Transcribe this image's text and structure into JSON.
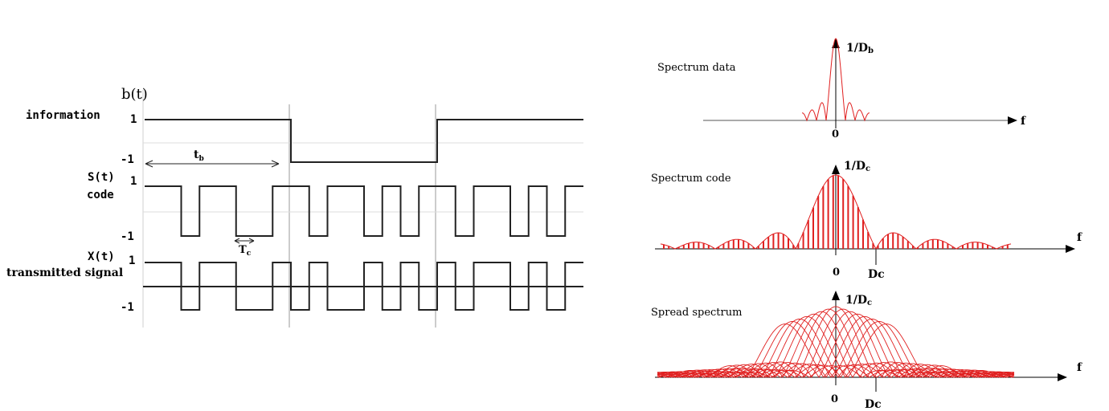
{
  "waveforms": {
    "b_label": "b(t)",
    "info_label": "information",
    "s_label": "S(t)",
    "code_label": "code",
    "x_label": "X(t)",
    "tx_label": "transmitted signal",
    "level_high": "1",
    "level_low": "-1",
    "tb_label": "t",
    "tb_sub": "b",
    "tc_label": "T",
    "tc_sub": "c",
    "bits": [
      1,
      -1,
      1
    ],
    "chips": [
      1,
      1,
      -1,
      1,
      1,
      -1,
      -1,
      1,
      1,
      -1,
      1,
      1,
      -1,
      1,
      -1,
      1,
      1,
      -1,
      1,
      1,
      -1,
      1,
      -1,
      1
    ]
  },
  "spectra": {
    "data": {
      "title": "Spectrum data",
      "peak_label": "1/D",
      "peak_sub": "b",
      "axis_label": "f",
      "zero_label": "0"
    },
    "code": {
      "title": "Spectrum code",
      "peak_label": "1/D",
      "peak_sub": "c",
      "axis_label": "f",
      "zero_label": "0",
      "dc_label": "Dc"
    },
    "spread": {
      "title": "Spread spectrum",
      "peak_label": "1/D",
      "peak_sub": "c",
      "axis_label": "f",
      "zero_label": "0",
      "dc_label": "Dc"
    },
    "curve_color": "#e02020"
  }
}
